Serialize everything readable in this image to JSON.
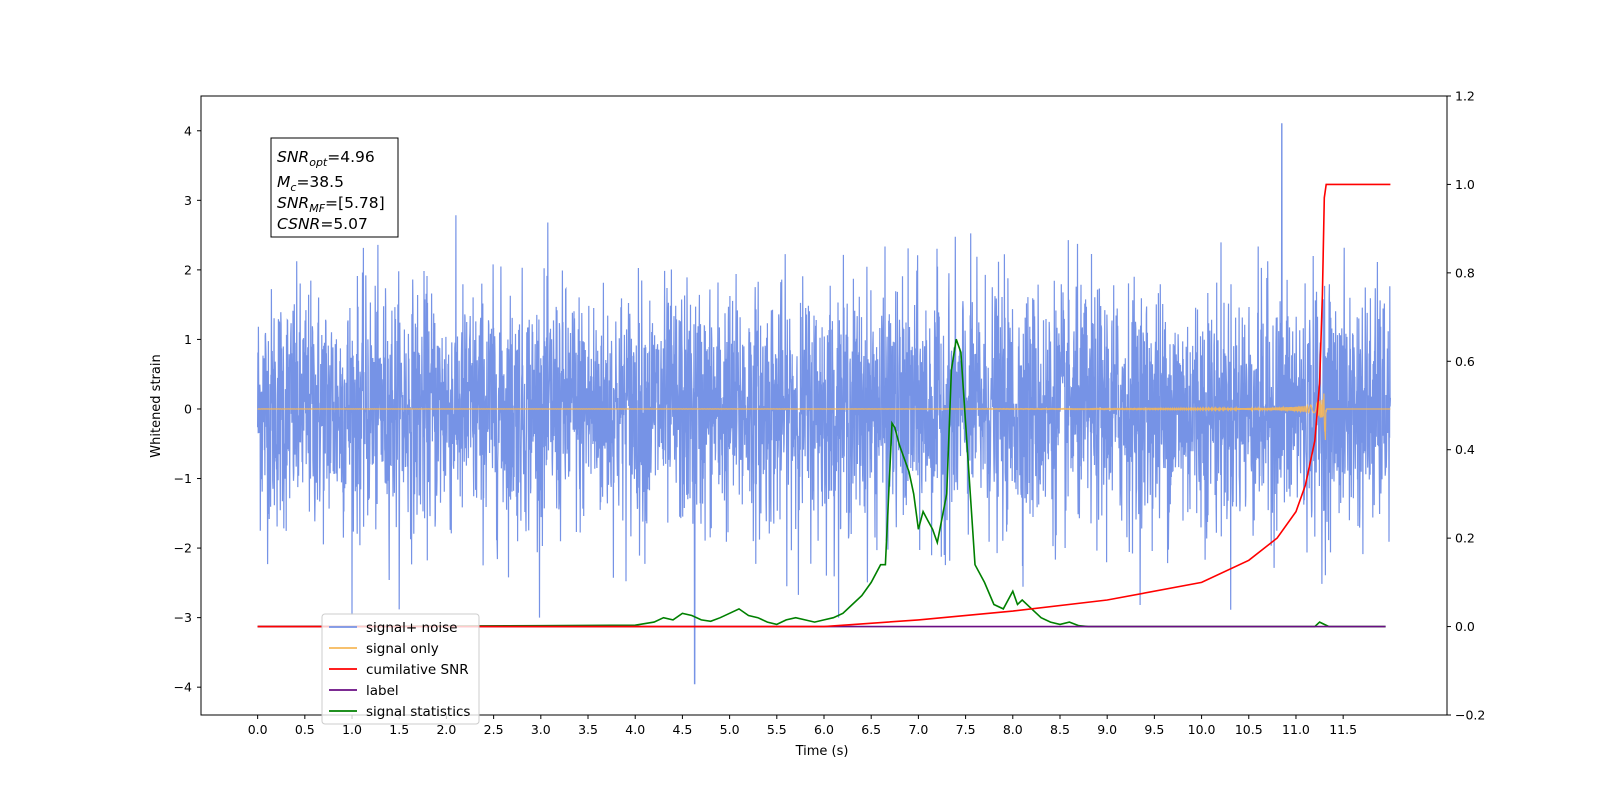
{
  "chart_data": {
    "type": "line",
    "xlabel": "Time (s)",
    "ylabel_left": "Whitened strain",
    "xlim": [
      -0.6,
      12.6
    ],
    "ylim_left": [
      -4.4,
      4.5
    ],
    "ylim_right": [
      -0.2,
      1.2
    ],
    "xticks": [
      "0.0",
      "0.5",
      "1.0",
      "1.5",
      "2.0",
      "2.5",
      "3.0",
      "3.5",
      "4.0",
      "4.5",
      "5.0",
      "5.5",
      "6.0",
      "6.5",
      "7.0",
      "7.5",
      "8.0",
      "8.5",
      "9.0",
      "9.5",
      "10.0",
      "10.5",
      "11.0",
      "11.5"
    ],
    "yticks_left": [
      "−4",
      "−3",
      "−2",
      "−1",
      "0",
      "1",
      "2",
      "3",
      "4"
    ],
    "yticks_right": [
      "−0.2",
      "0.0",
      "0.2",
      "0.4",
      "0.6",
      "0.8",
      "1.0",
      "1.2"
    ],
    "grid": false,
    "legend_position": "lower-left",
    "info_box": {
      "line1": {
        "main": "SNR",
        "sub": "opt",
        "rest": "=4.96"
      },
      "line2": {
        "main": "M",
        "sub": "c",
        "rest": "=38.5"
      },
      "line3": {
        "main": "SNR",
        "sub": "MF",
        "rest": "=[5.78]"
      },
      "line4": {
        "main": "CSNR",
        "sub": "",
        "rest": "=5.07"
      }
    },
    "series": [
      {
        "name": "signal+ noise",
        "color": "#7693e6",
        "axis": "left",
        "description_values": {
          "x_range": [
            0.0,
            12.0
          ],
          "typical_envelope": [
            -2.0,
            2.0
          ],
          "extremes": {
            "max": 4.1,
            "max_at": 10.85,
            "min": -3.95,
            "min_at": 4.63
          }
        }
      },
      {
        "name": "signal only",
        "color": "#f6b85a",
        "axis": "left",
        "chirp": {
          "x_start": 0.0,
          "x_merger": 11.3,
          "x_end": 12.0,
          "peak_amplitude": 1.0
        }
      },
      {
        "name": "cumilative SNR",
        "color": "#ff0000",
        "axis": "right",
        "x": [
          0.0,
          5.0,
          6.0,
          7.0,
          8.0,
          9.0,
          10.0,
          10.5,
          10.8,
          11.0,
          11.1,
          11.2,
          11.25,
          11.28,
          11.3,
          11.32,
          11.4,
          12.0
        ],
        "values": [
          0.0,
          0.0,
          0.0,
          0.015,
          0.035,
          0.06,
          0.1,
          0.15,
          0.2,
          0.26,
          0.32,
          0.42,
          0.55,
          0.75,
          0.97,
          1.0,
          1.0,
          1.0
        ]
      },
      {
        "name": "label",
        "color": "#6a0d83",
        "axis": "right",
        "x": [
          0.0,
          11.95
        ],
        "values": [
          0.0,
          0.0
        ]
      },
      {
        "name": "signal statistics",
        "color": "#008000",
        "axis": "right",
        "x": [
          0.0,
          3.0,
          4.0,
          4.2,
          4.3,
          4.4,
          4.5,
          4.6,
          4.7,
          4.8,
          4.9,
          5.0,
          5.1,
          5.2,
          5.3,
          5.4,
          5.5,
          5.6,
          5.7,
          5.8,
          5.9,
          6.0,
          6.1,
          6.2,
          6.3,
          6.4,
          6.5,
          6.6,
          6.65,
          6.72,
          6.75,
          6.8,
          6.9,
          6.95,
          7.0,
          7.05,
          7.1,
          7.15,
          7.2,
          7.3,
          7.35,
          7.4,
          7.45,
          7.5,
          7.55,
          7.6,
          7.7,
          7.8,
          7.9,
          8.0,
          8.05,
          8.1,
          8.2,
          8.3,
          8.4,
          8.5,
          8.6,
          8.7,
          8.8,
          9.0,
          10.0,
          11.2,
          11.25,
          11.3,
          11.35,
          11.95
        ],
        "values": [
          0.0,
          0.002,
          0.003,
          0.01,
          0.02,
          0.015,
          0.03,
          0.025,
          0.015,
          0.012,
          0.02,
          0.03,
          0.04,
          0.025,
          0.02,
          0.01,
          0.005,
          0.015,
          0.02,
          0.015,
          0.01,
          0.015,
          0.02,
          0.03,
          0.05,
          0.07,
          0.1,
          0.14,
          0.14,
          0.46,
          0.45,
          0.41,
          0.35,
          0.3,
          0.22,
          0.26,
          0.24,
          0.22,
          0.19,
          0.3,
          0.58,
          0.65,
          0.62,
          0.46,
          0.3,
          0.14,
          0.1,
          0.05,
          0.04,
          0.08,
          0.05,
          0.06,
          0.04,
          0.02,
          0.01,
          0.005,
          0.01,
          0.002,
          0.0,
          0.0,
          0.0,
          0.0,
          0.01,
          0.005,
          0.0,
          0.0
        ]
      }
    ]
  }
}
